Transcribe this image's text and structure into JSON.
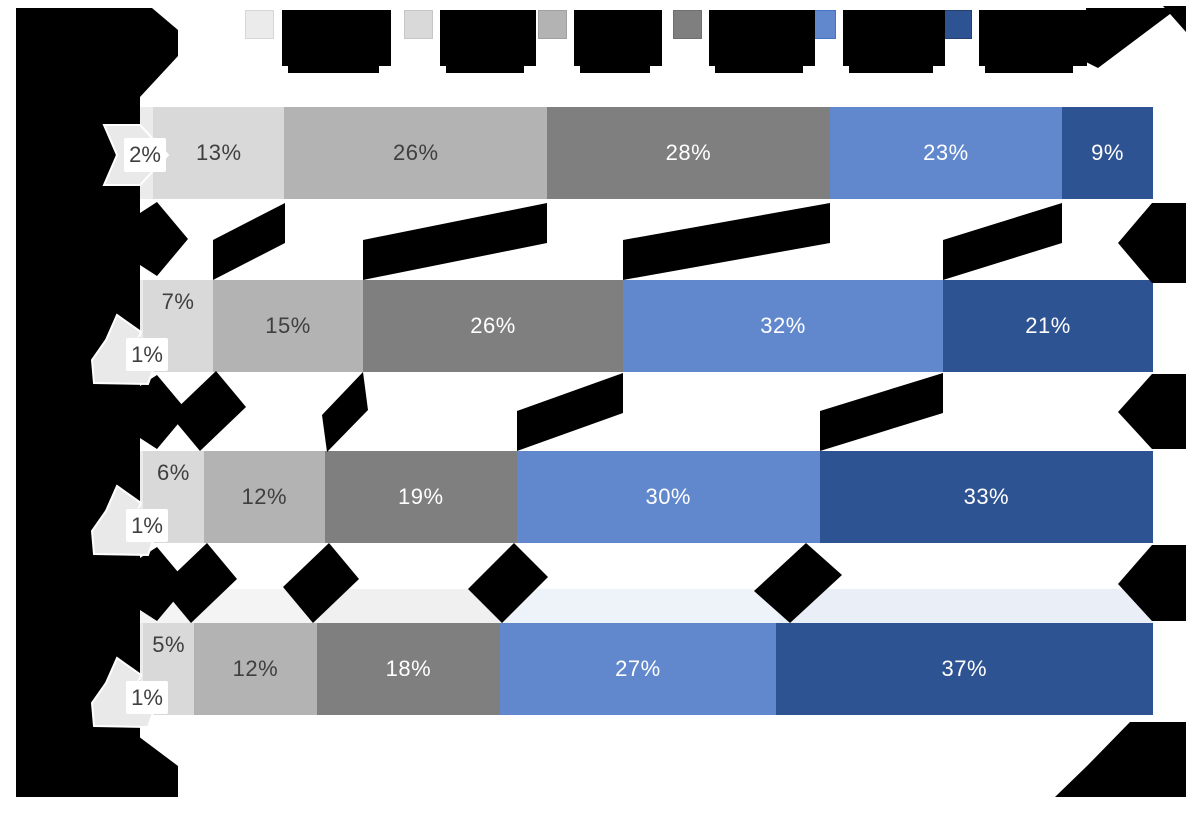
{
  "redaction_note": "chart title, legend labels, category labels and inter-bar annotations are blacked out in the source image",
  "colors": {
    "series": [
      "#EBEBEB",
      "#D9D9D9",
      "#B3B3B3",
      "#7F7F7F",
      "#6188CD",
      "#2E5393"
    ],
    "series_borders": [
      "#D6D6D6",
      "#C6C6C6",
      "#A0A0A0",
      "#6F6F6F",
      "#4472C4",
      "#24406E"
    ],
    "label_dark": "#3F3F3F",
    "label_light": "#FFFFFF",
    "callout_fill": "#E9E9E9",
    "redaction": "#000000"
  },
  "legend": {
    "items": [
      {
        "label_redacted": true,
        "color": "#EBEBEB"
      },
      {
        "label_redacted": true,
        "color": "#D9D9D9"
      },
      {
        "label_redacted": true,
        "color": "#B3B3B3"
      },
      {
        "label_redacted": true,
        "color": "#7F7F7F"
      },
      {
        "label_redacted": true,
        "color": "#6188CD"
      },
      {
        "label_redacted": true,
        "color": "#2E5393"
      }
    ]
  },
  "chart_data": {
    "type": "bar",
    "orientation": "horizontal",
    "stacked_100_percent": true,
    "categories_redacted": true,
    "n_categories": 4,
    "legend_position": "top",
    "series": [
      {
        "name_redacted": true,
        "color": "#EBEBEB",
        "values": [
          2,
          1,
          1,
          1
        ]
      },
      {
        "name_redacted": true,
        "color": "#D9D9D9",
        "values": [
          13,
          7,
          6,
          5
        ]
      },
      {
        "name_redacted": true,
        "color": "#B3B3B3",
        "values": [
          26,
          15,
          12,
          12
        ]
      },
      {
        "name_redacted": true,
        "color": "#7F7F7F",
        "values": [
          28,
          26,
          19,
          18
        ]
      },
      {
        "name_redacted": true,
        "color": "#6188CD",
        "values": [
          23,
          32,
          30,
          27
        ]
      },
      {
        "name_redacted": true,
        "color": "#2E5393",
        "values": [
          9,
          21,
          33,
          37
        ]
      }
    ],
    "rows": [
      {
        "values": [
          2,
          13,
          26,
          28,
          23,
          9
        ],
        "callout_label": "2%",
        "segment_labels": [
          "",
          "13%",
          "26%",
          "28%",
          "23%",
          "9%"
        ]
      },
      {
        "values": [
          1,
          7,
          15,
          26,
          32,
          21
        ],
        "callout_label": "1%",
        "segment_labels": [
          "",
          "7%",
          "15%",
          "26%",
          "32%",
          "21%"
        ]
      },
      {
        "values": [
          1,
          6,
          12,
          19,
          30,
          33
        ],
        "callout_label": "1%",
        "segment_labels": [
          "",
          "6%",
          "12%",
          "19%",
          "30%",
          "33%"
        ]
      },
      {
        "values": [
          1,
          5,
          12,
          18,
          27,
          37
        ],
        "callout_label": "1%",
        "segment_labels": [
          "",
          "5%",
          "12%",
          "18%",
          "27%",
          "37%"
        ]
      }
    ]
  }
}
